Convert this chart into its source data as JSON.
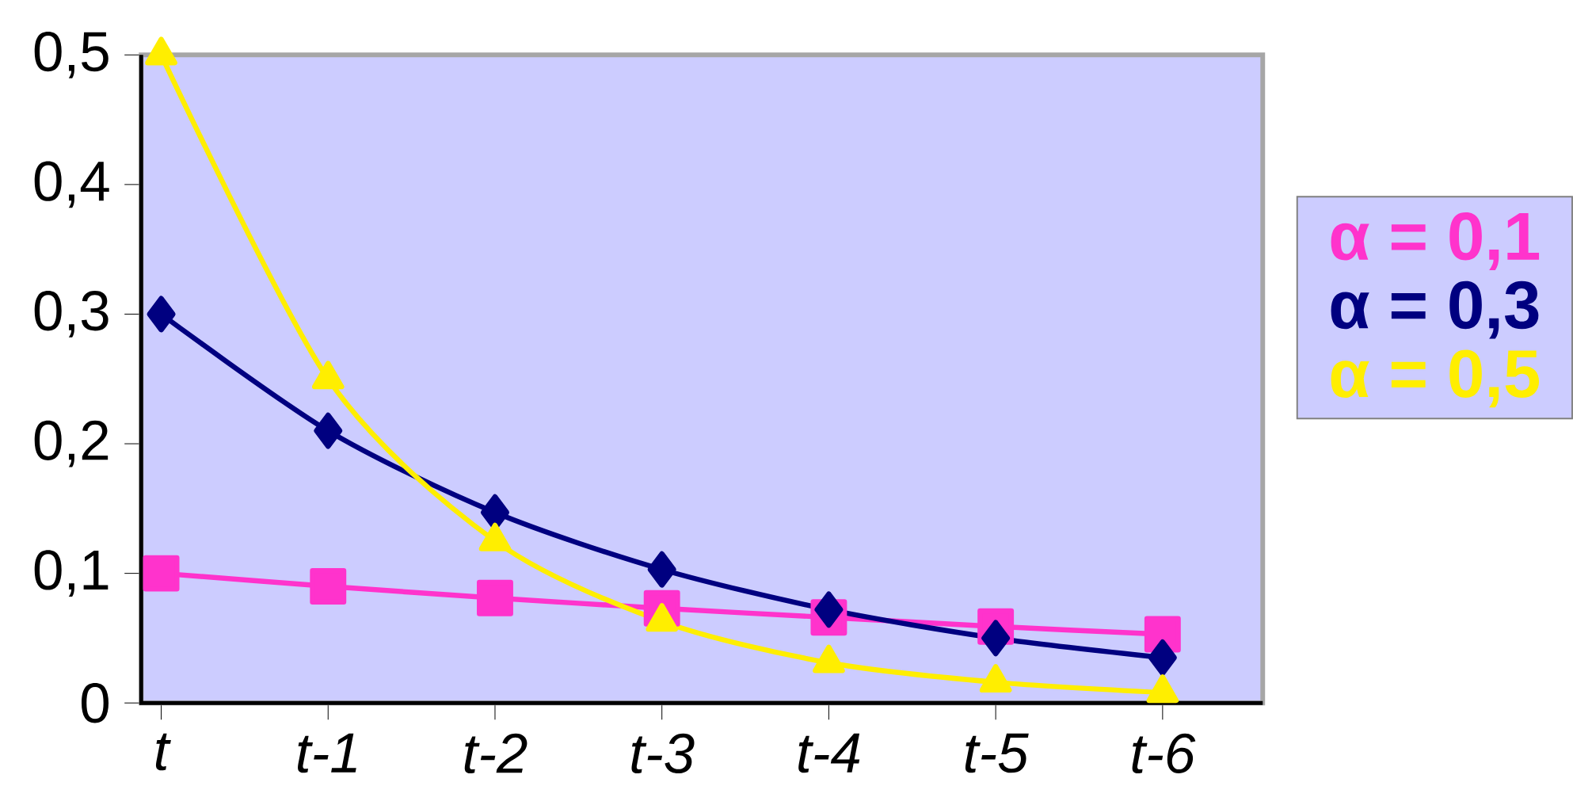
{
  "chart_data": {
    "type": "line",
    "categories": [
      "t",
      "t-1",
      "t-2",
      "t-3",
      "t-4",
      "t-5",
      "t-6"
    ],
    "series": [
      {
        "name": "α = 0,1",
        "color": "#ff33cc",
        "marker": "square",
        "values": [
          0.1,
          0.09,
          0.081,
          0.073,
          0.066,
          0.059,
          0.053
        ]
      },
      {
        "name": "α = 0,3",
        "color": "#000080",
        "marker": "diamond",
        "values": [
          0.3,
          0.21,
          0.147,
          0.103,
          0.072,
          0.05,
          0.035
        ]
      },
      {
        "name": "α = 0,5",
        "color": "#ffee00",
        "marker": "triangle",
        "values": [
          0.5,
          0.25,
          0.125,
          0.063,
          0.031,
          0.016,
          0.008
        ]
      }
    ],
    "ylim": [
      0,
      0.5
    ],
    "yticks": [
      0,
      {
        "value": 0.1,
        "label": "0,1"
      },
      {
        "value": 0.2,
        "label": "0,2"
      },
      {
        "value": 0.3,
        "label": "0,3"
      },
      {
        "value": 0.4,
        "label": "0,4"
      },
      {
        "value": 0.5,
        "label": "0,5"
      }
    ],
    "grid": false,
    "legend": "right",
    "line_style": "solid"
  }
}
